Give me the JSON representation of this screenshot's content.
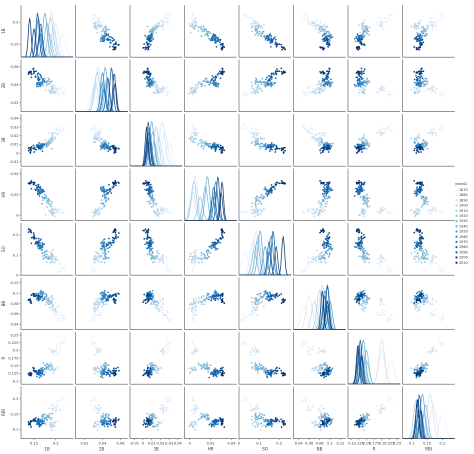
{
  "chart_data": {
    "type": "scatter",
    "kind": "pairplot",
    "variables": [
      "1B",
      "2B",
      "3B",
      "HR",
      "SO",
      "BB",
      "R",
      "RBI"
    ],
    "diagonal": "kde",
    "hue": {
      "name": "yearID",
      "levels": [
        "1870",
        "1880",
        "1890",
        "1900",
        "1910",
        "1920",
        "1930",
        "1940",
        "1950",
        "1960",
        "1970",
        "1980",
        "1990",
        "2000",
        "2010"
      ],
      "palette": [
        "#e8f1fa",
        "#dbe9f6",
        "#cfe1f2",
        "#bfd8ed",
        "#a9cfe5",
        "#93c4de",
        "#7ab6d9",
        "#62a8d3",
        "#4b98ca",
        "#3787c0",
        "#2676b8",
        "#1764ab",
        "#0d539a",
        "#08428a",
        "#08306b"
      ]
    },
    "legend_position": "right",
    "grid": false,
    "axes": {
      "1B": {
        "ticks": [
          0.15,
          0.2
        ],
        "range": [
          0.12,
          0.24
        ]
      },
      "2B": {
        "ticks": [
          0.02,
          0.04,
          0.06
        ],
        "range": [
          0.01,
          0.068
        ]
      },
      "3B": {
        "ticks": [
          -0.01,
          0.0,
          0.01,
          0.02,
          0.03,
          0.04
        ],
        "range": [
          -0.015,
          0.045
        ]
      },
      "HR": {
        "ticks": [
          0.0,
          0.02,
          0.04
        ],
        "range": [
          -0.005,
          0.045
        ]
      },
      "SO": {
        "ticks": [
          0.0,
          0.1,
          0.2
        ],
        "range": [
          0.0,
          0.26
        ]
      },
      "BB": {
        "ticks": [
          0.04,
          0.06,
          0.08,
          0.1,
          0.12
        ],
        "range": [
          0.03,
          0.13
        ]
      },
      "R": {
        "ticks": [
          0.1,
          0.125,
          0.15,
          0.175,
          0.2,
          0.225,
          0.25
        ],
        "range": [
          0.09,
          0.26
        ]
      },
      "RBI": {
        "ticks": [
          0.1,
          0.15,
          0.2
        ],
        "range": [
          0.07,
          0.24
        ]
      }
    },
    "era_values": [
      {
        "yearID": "1870",
        "1B": 0.215,
        "2B": 0.03,
        "3B": 0.03,
        "HR": 0.002,
        "SO": 0.03,
        "BB": 0.05,
        "R": 0.23,
        "RBI": 0.2
      },
      {
        "yearID": "1880",
        "1B": 0.2,
        "2B": 0.035,
        "3B": 0.025,
        "HR": 0.004,
        "SO": 0.07,
        "BB": 0.06,
        "R": 0.2,
        "RBI": 0.17
      },
      {
        "yearID": "1890",
        "1B": 0.19,
        "2B": 0.035,
        "3B": 0.022,
        "HR": 0.005,
        "SO": 0.085,
        "BB": 0.085,
        "R": 0.2,
        "RBI": 0.16
      },
      {
        "yearID": "1900",
        "1B": 0.195,
        "2B": 0.032,
        "3B": 0.018,
        "HR": 0.003,
        "SO": 0.08,
        "BB": 0.07,
        "R": 0.14,
        "RBI": 0.12
      },
      {
        "yearID": "1910",
        "1B": 0.188,
        "2B": 0.034,
        "3B": 0.015,
        "HR": 0.004,
        "SO": 0.095,
        "BB": 0.08,
        "R": 0.135,
        "RBI": 0.115
      },
      {
        "yearID": "1920",
        "1B": 0.185,
        "2B": 0.042,
        "3B": 0.013,
        "HR": 0.01,
        "SO": 0.075,
        "BB": 0.085,
        "R": 0.15,
        "RBI": 0.14
      },
      {
        "yearID": "1930",
        "1B": 0.18,
        "2B": 0.045,
        "3B": 0.011,
        "HR": 0.015,
        "SO": 0.09,
        "BB": 0.09,
        "R": 0.15,
        "RBI": 0.145
      },
      {
        "yearID": "1940",
        "1B": 0.175,
        "2B": 0.043,
        "3B": 0.01,
        "HR": 0.017,
        "SO": 0.105,
        "BB": 0.095,
        "R": 0.14,
        "RBI": 0.135
      },
      {
        "yearID": "1950",
        "1B": 0.165,
        "2B": 0.04,
        "3B": 0.008,
        "HR": 0.025,
        "SO": 0.13,
        "BB": 0.1,
        "R": 0.135,
        "RBI": 0.13
      },
      {
        "yearID": "1960",
        "1B": 0.16,
        "2B": 0.04,
        "3B": 0.007,
        "HR": 0.025,
        "SO": 0.16,
        "BB": 0.09,
        "R": 0.125,
        "RBI": 0.12
      },
      {
        "yearID": "1970",
        "1B": 0.165,
        "2B": 0.042,
        "3B": 0.007,
        "HR": 0.022,
        "SO": 0.15,
        "BB": 0.095,
        "R": 0.125,
        "RBI": 0.12
      },
      {
        "yearID": "1980",
        "1B": 0.165,
        "2B": 0.046,
        "3B": 0.007,
        "HR": 0.023,
        "SO": 0.15,
        "BB": 0.09,
        "R": 0.125,
        "RBI": 0.118
      },
      {
        "yearID": "1990",
        "1B": 0.158,
        "2B": 0.05,
        "3B": 0.006,
        "HR": 0.027,
        "SO": 0.17,
        "BB": 0.095,
        "R": 0.13,
        "RBI": 0.125
      },
      {
        "yearID": "2000",
        "1B": 0.15,
        "2B": 0.054,
        "3B": 0.005,
        "HR": 0.03,
        "SO": 0.185,
        "BB": 0.095,
        "R": 0.135,
        "RBI": 0.13
      },
      {
        "yearID": "2010",
        "1B": 0.14,
        "2B": 0.053,
        "3B": 0.004,
        "HR": 0.031,
        "SO": 0.22,
        "BB": 0.085,
        "R": 0.122,
        "RBI": 0.118
      }
    ]
  }
}
